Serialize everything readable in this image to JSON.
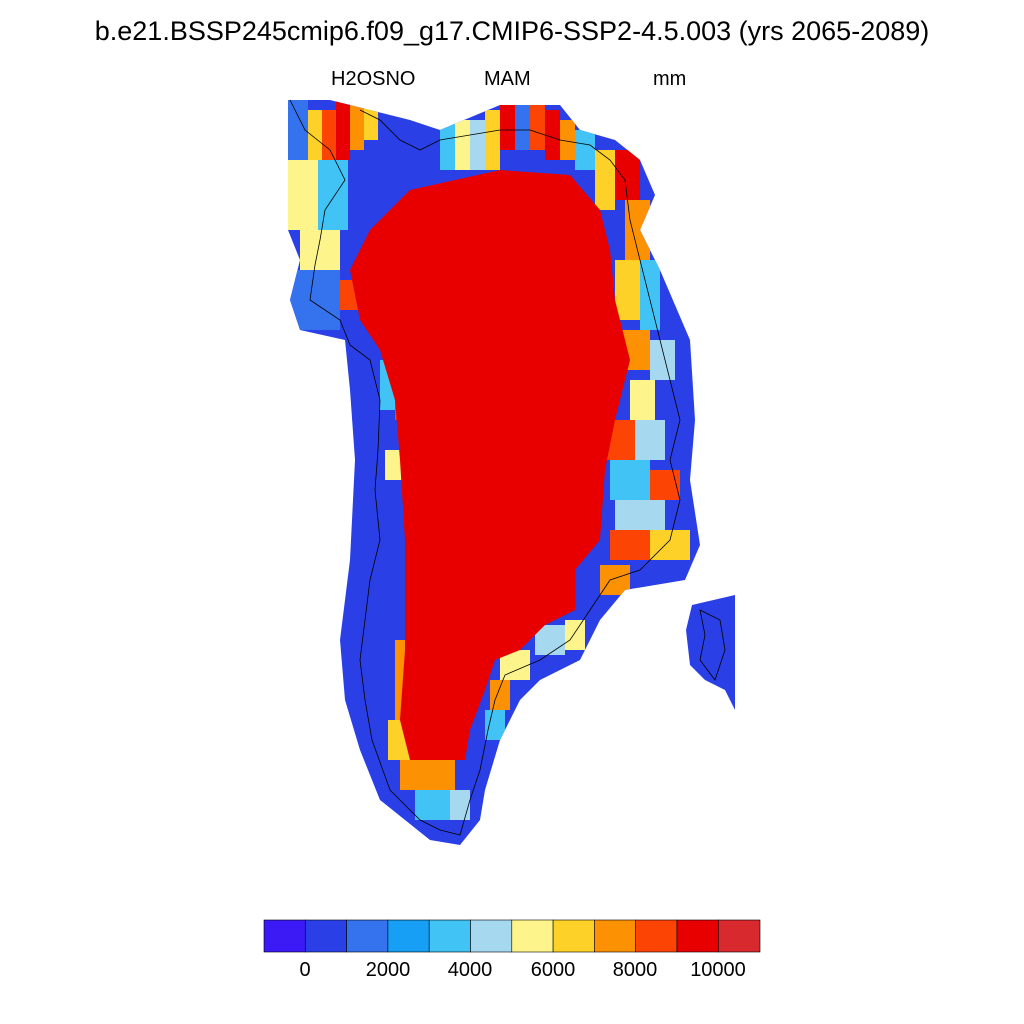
{
  "title": "b.e21.BSSP245cmip6.f09_g17.CMIP6-SSP2-4.5.003 (yrs 2065-2089)",
  "subtitle": {
    "variable": "H2OSNO",
    "season": "MAM",
    "units": "mm"
  },
  "colorbar": {
    "colors": [
      "#3b1af5",
      "#2a40e6",
      "#3572ee",
      "#169ff5",
      "#41c3f5",
      "#a6d9f0",
      "#fdf58b",
      "#fdd127",
      "#fc9104",
      "#fc4504",
      "#e80000",
      "#d7292e"
    ],
    "tick_labels": [
      "0",
      "2000",
      "4000",
      "6000",
      "8000",
      "10000"
    ]
  },
  "chart_data": {
    "type": "heatmap",
    "title": "b.e21.BSSP245cmip6.f09_g17.CMIP6-SSP2-4.5.003 (yrs 2065-2089)",
    "variable": "H2OSNO",
    "season": "MAM",
    "units": "mm",
    "region": "Greenland",
    "colorbar_levels": [
      0,
      1000,
      2000,
      3000,
      4000,
      5000,
      6000,
      7000,
      8000,
      9000,
      10000
    ],
    "colorbar_tick_labels": [
      "0",
      "2000",
      "4000",
      "6000",
      "8000",
      "10000"
    ],
    "interior_value": "> 10000",
    "margin_values_range": [
      0,
      10000
    ]
  }
}
